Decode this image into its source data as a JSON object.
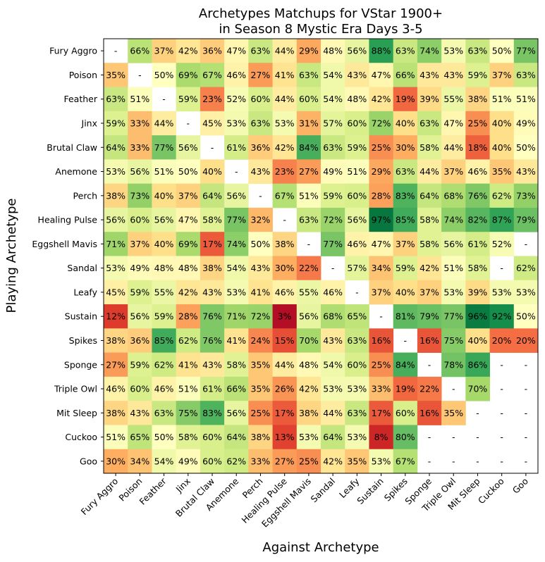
{
  "chart_data": {
    "type": "heatmap",
    "title": "Archetypes Matchups for VStar 1900+",
    "subtitle": "in Season 8 Mystic Era Days 3-5",
    "xlabel": "Against Archetype",
    "ylabel": "Playing Archetype",
    "rows": [
      "Fury Aggro",
      "Poison",
      "Feather",
      "Jinx",
      "Brutal Claw",
      "Anemone",
      "Perch",
      "Healing Pulse",
      "Eggshell Mavis",
      "Sandal",
      "Leafy",
      "Sustain",
      "Spikes",
      "Sponge",
      "Triple Owl",
      "Mit Sleep",
      "Cuckoo",
      "Goo"
    ],
    "columns": [
      "Fury Aggro",
      "Poison",
      "Feather",
      "Jinx",
      "Brutal Claw",
      "Anemone",
      "Perch",
      "Healing Pulse",
      "Eggshell Mavis",
      "Sandal",
      "Leafy",
      "Sustain",
      "Spikes",
      "Sponge",
      "Triple Owl",
      "Mit Sleep",
      "Cuckoo",
      "Goo"
    ],
    "values": [
      [
        null,
        66,
        37,
        42,
        36,
        47,
        63,
        44,
        29,
        48,
        56,
        88,
        63,
        74,
        53,
        63,
        50,
        77
      ],
      [
        35,
        null,
        50,
        69,
        67,
        46,
        27,
        41,
        63,
        54,
        43,
        47,
        66,
        43,
        43,
        59,
        37,
        63
      ],
      [
        63,
        51,
        null,
        59,
        23,
        52,
        60,
        44,
        60,
        54,
        48,
        42,
        19,
        39,
        55,
        38,
        51,
        51
      ],
      [
        59,
        33,
        44,
        null,
        45,
        53,
        63,
        53,
        31,
        57,
        60,
        72,
        40,
        63,
        47,
        25,
        40,
        49
      ],
      [
        64,
        33,
        77,
        56,
        null,
        61,
        36,
        42,
        84,
        63,
        59,
        25,
        30,
        58,
        44,
        18,
        40,
        50
      ],
      [
        53,
        56,
        51,
        50,
        40,
        null,
        43,
        23,
        27,
        49,
        51,
        29,
        63,
        44,
        37,
        46,
        35,
        43
      ],
      [
        38,
        73,
        40,
        37,
        64,
        56,
        null,
        67,
        51,
        59,
        60,
        28,
        83,
        64,
        68,
        76,
        62,
        73
      ],
      [
        56,
        60,
        56,
        47,
        58,
        77,
        32,
        null,
        63,
        72,
        56,
        97,
        85,
        58,
        74,
        82,
        87,
        79
      ],
      [
        71,
        37,
        40,
        69,
        17,
        74,
        50,
        38,
        null,
        77,
        46,
        47,
        37,
        58,
        56,
        61,
        52,
        null
      ],
      [
        53,
        49,
        48,
        48,
        38,
        54,
        43,
        30,
        22,
        null,
        57,
        34,
        59,
        42,
        51,
        58,
        null,
        62
      ],
      [
        45,
        59,
        55,
        42,
        43,
        53,
        41,
        46,
        55,
        46,
        null,
        37,
        40,
        37,
        53,
        39,
        53,
        53
      ],
      [
        12,
        56,
        59,
        28,
        76,
        71,
        72,
        3,
        56,
        68,
        65,
        null,
        81,
        79,
        77,
        96,
        92,
        50
      ],
      [
        38,
        36,
        85,
        62,
        76,
        41,
        24,
        15,
        70,
        43,
        63,
        16,
        null,
        16,
        75,
        40,
        20,
        20
      ],
      [
        27,
        59,
        62,
        41,
        43,
        58,
        35,
        44,
        48,
        54,
        60,
        25,
        84,
        null,
        78,
        86,
        null,
        null
      ],
      [
        46,
        60,
        46,
        51,
        61,
        66,
        35,
        26,
        42,
        53,
        53,
        33,
        19,
        22,
        null,
        70,
        null,
        null
      ],
      [
        38,
        43,
        63,
        75,
        83,
        56,
        25,
        17,
        38,
        44,
        63,
        17,
        60,
        16,
        35,
        null,
        null,
        null
      ],
      [
        51,
        65,
        50,
        58,
        60,
        64,
        38,
        13,
        53,
        64,
        53,
        8,
        80,
        null,
        null,
        null,
        null,
        null
      ],
      [
        30,
        34,
        54,
        49,
        60,
        62,
        33,
        27,
        25,
        42,
        35,
        53,
        67,
        null,
        null,
        null,
        null,
        null
      ]
    ],
    "value_suffix": "%",
    "missing_label": "-",
    "colormap": "RdYlGn",
    "vmin": 0,
    "vmax": 100
  }
}
